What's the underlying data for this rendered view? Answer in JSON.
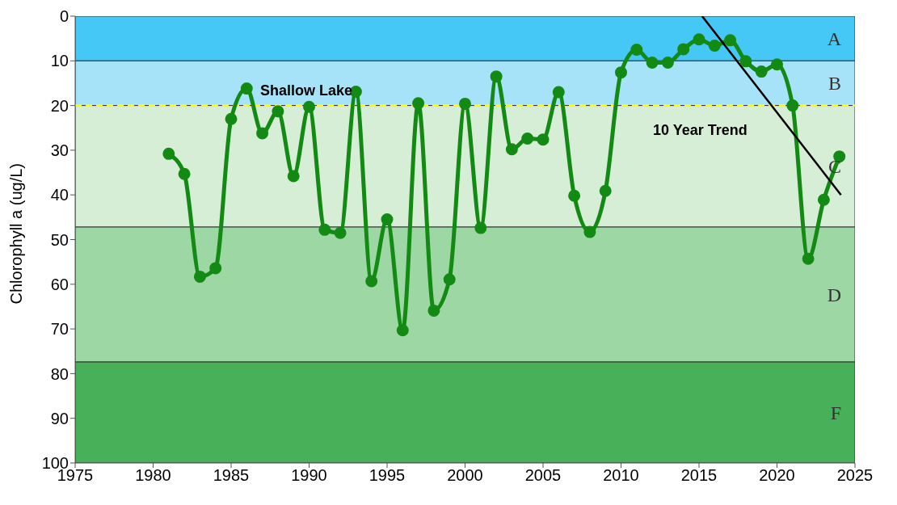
{
  "chart_data": {
    "type": "line",
    "ylabel": "Chlorophyll a (ug/L)",
    "x": [
      1981,
      1982,
      1983,
      1984,
      1985,
      1986,
      1987,
      1988,
      1989,
      1990,
      1991,
      1992,
      1993,
      1994,
      1995,
      1996,
      1997,
      1998,
      1999,
      2000,
      2001,
      2002,
      2003,
      2004,
      2005,
      2006,
      2007,
      2008,
      2009,
      2010,
      2011,
      2012,
      2013,
      2014,
      2015,
      2016,
      2017,
      2018,
      2019,
      2020,
      2021,
      2022,
      2023,
      2024
    ],
    "series": [
      {
        "color": "#138a13",
        "marker": "circle",
        "values": [
          30.8,
          35.3,
          58.3,
          56.4,
          23,
          16.2,
          26.2,
          21.3,
          35.8,
          20.3,
          47.8,
          48.5,
          16.9,
          59.3,
          45.5,
          70.3,
          19.5,
          65.9,
          58.9,
          19.6,
          47.4,
          13.5,
          29.8,
          27.4,
          27.6,
          17,
          40.2,
          48.3,
          39.1,
          12.6,
          7.5,
          10.4,
          10.4,
          7.4,
          5.2,
          6.6,
          5.4,
          10.1,
          12.4,
          10.8,
          20,
          54.3,
          41.1,
          31.4
        ]
      },
      {
        "type": "line",
        "color": "#000000",
        "marker": "none",
        "x": [
          2015.2,
          2024.1
        ],
        "values": [
          0,
          40
        ]
      }
    ],
    "xlim": [
      1975,
      2025
    ],
    "xticks": [
      1975,
      1980,
      1985,
      1990,
      1995,
      2000,
      2005,
      2010,
      2015,
      2020,
      2025
    ],
    "ylim": [
      100,
      0
    ],
    "yticks": [
      0,
      10,
      20,
      30,
      40,
      50,
      60,
      70,
      80,
      90,
      100
    ],
    "bands": [
      {
        "axis": "y",
        "from": 0,
        "to": 10,
        "label": "A",
        "color": "#45c8f5"
      },
      {
        "axis": "y",
        "from": 10,
        "to": 20,
        "label": "B",
        "color": "#a6e3f8"
      },
      {
        "axis": "y",
        "from": 20,
        "to": 47.2,
        "label": "C",
        "color": "#d6eed6"
      },
      {
        "axis": "y",
        "from": 47.2,
        "to": 77.4,
        "label": "D",
        "color": "#9dd8a4"
      },
      {
        "axis": "y",
        "from": 77.4,
        "to": 100,
        "label": "F",
        "color": "#47b058"
      }
    ],
    "ref_lines": [
      {
        "axis": "y",
        "value": 20,
        "label": "Shallow Lake",
        "color": "#ffff00",
        "line_style": "dashed"
      }
    ],
    "annotations": [
      "10 Year Trend"
    ],
    "legend": false
  }
}
